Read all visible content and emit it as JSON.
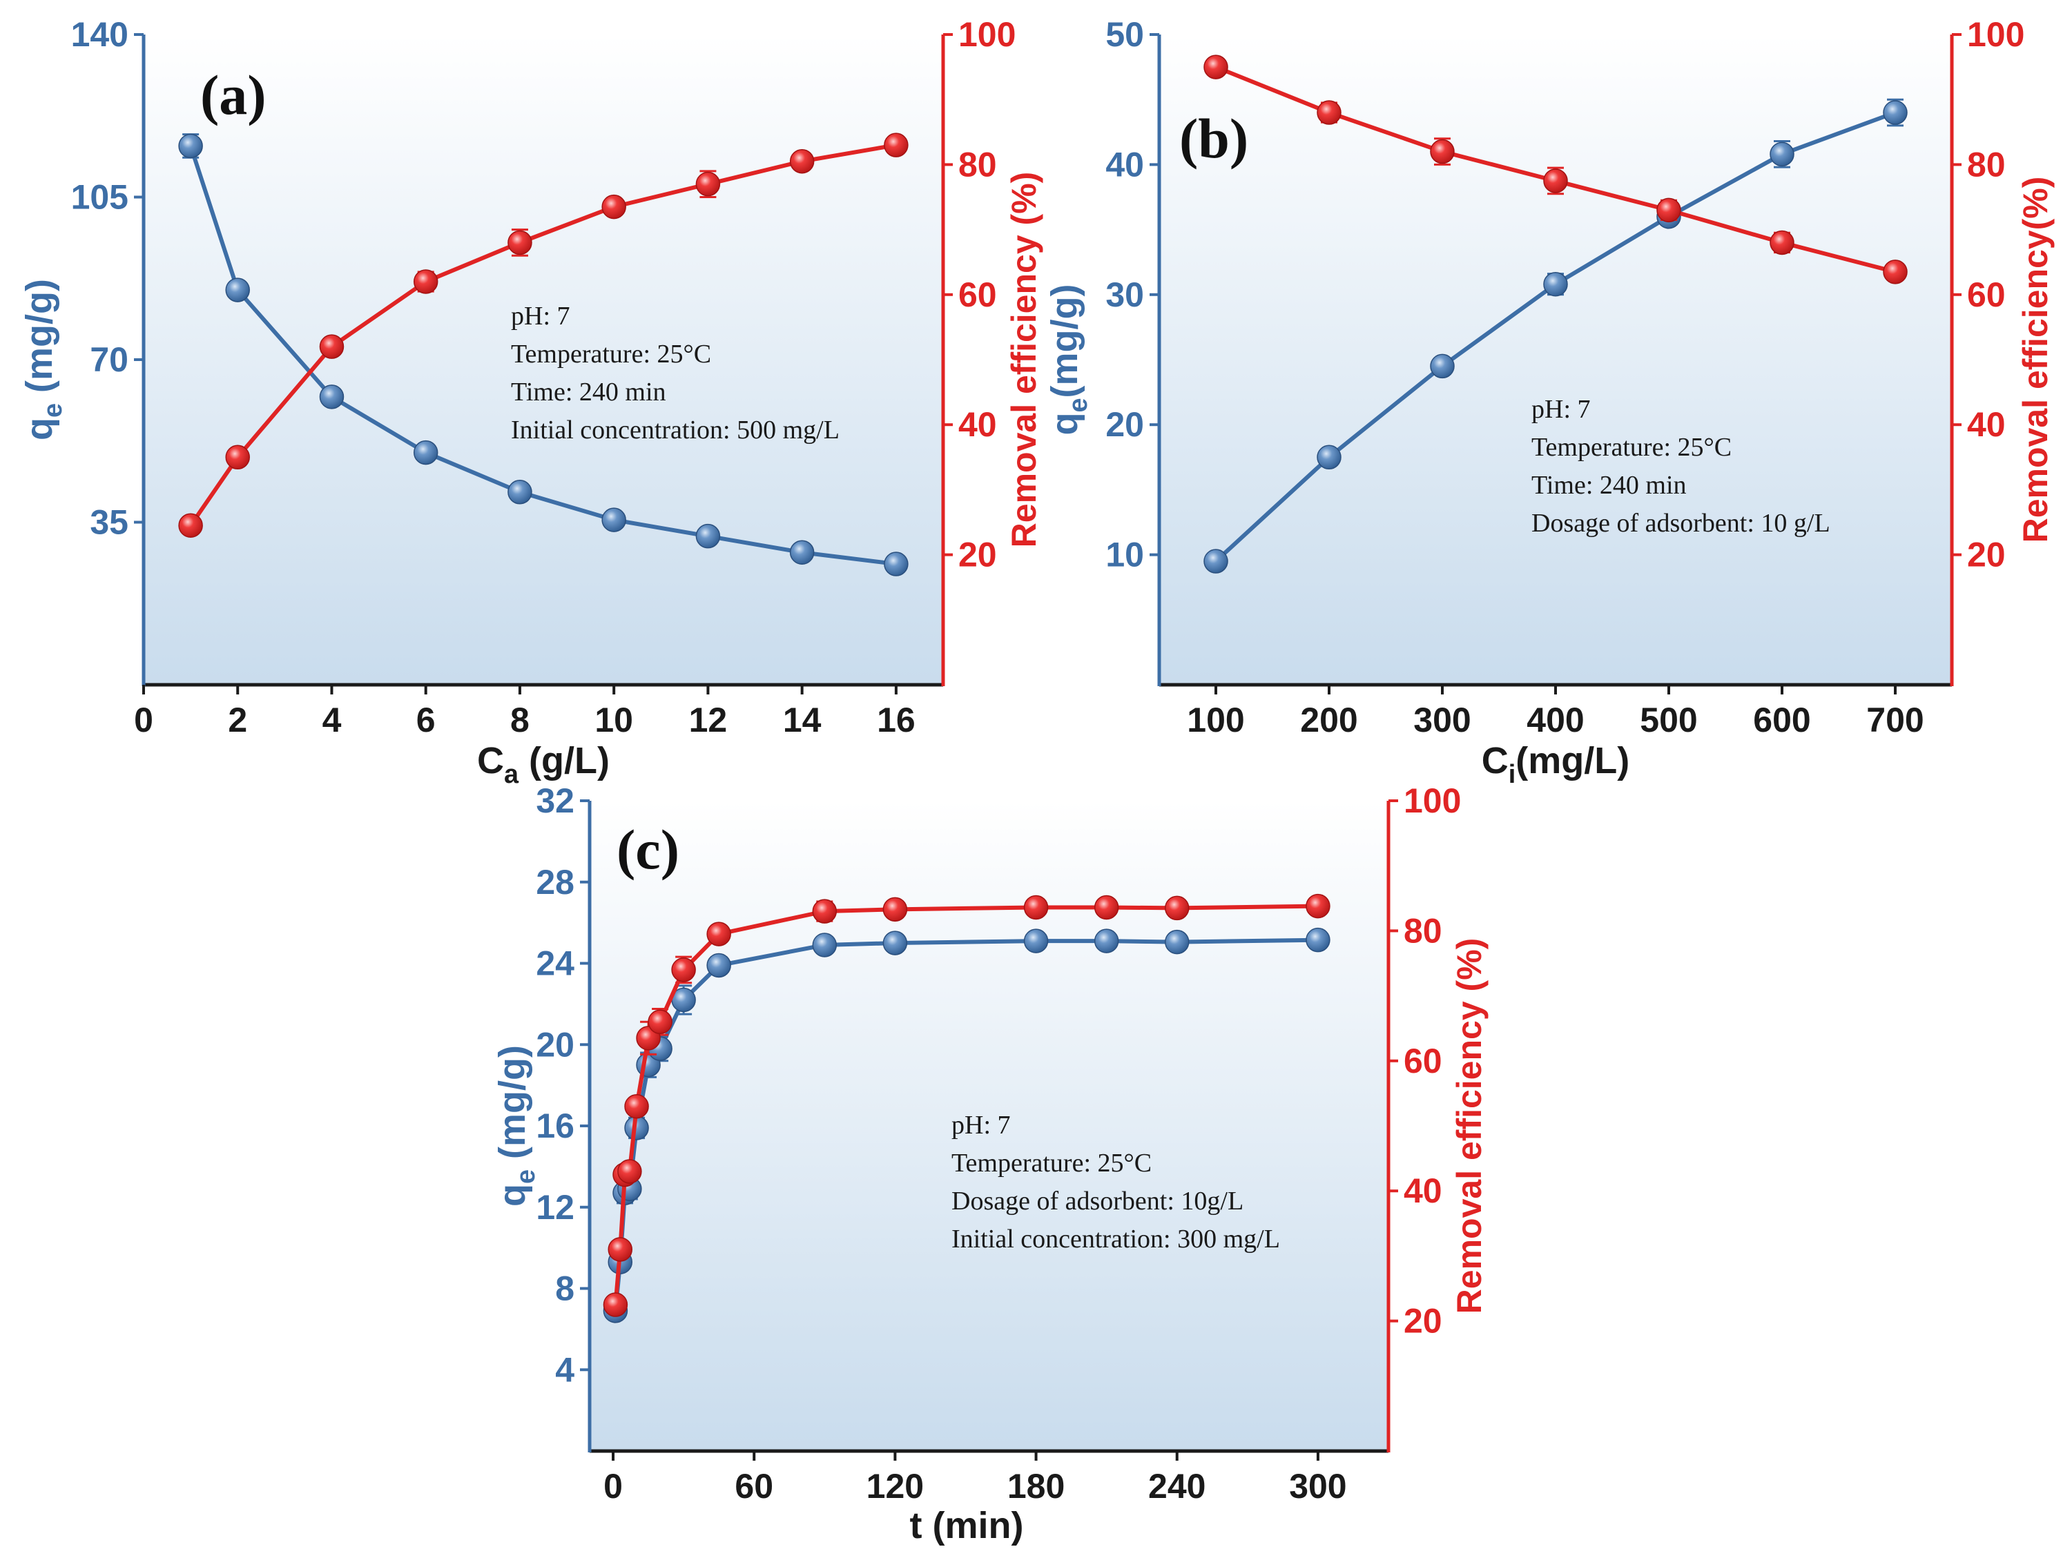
{
  "figure": {
    "colors": {
      "blue": "#3d6ea6",
      "red": "#e02424",
      "axis_text_blue": "#3d6ea6",
      "axis_text_red": "#e02424",
      "bg_top": "#ffffff",
      "bg_bottom": "#c9dced"
    }
  },
  "chart_data": [
    {
      "id": "a",
      "type": "line",
      "panel_label": "(a)",
      "xlabel_main": "C",
      "xlabel_sub": "a",
      "xlabel_tail": " (g/L)",
      "ylabel_left_main": "q",
      "ylabel_left_sub": "e",
      "ylabel_left_tail": " (mg/g)",
      "ylabel_right": "Removal efficiency (%)",
      "xlim": [
        0,
        17
      ],
      "ylim_left": [
        0,
        140
      ],
      "ylim_right": [
        0,
        100
      ],
      "x_ticks": [
        "0",
        "2",
        "4",
        "6",
        "8",
        "10",
        "12",
        "14",
        "16"
      ],
      "x_tick_values": [
        0,
        2,
        4,
        6,
        8,
        10,
        12,
        14,
        16
      ],
      "y_left_ticks": [
        "35",
        "70",
        "105",
        "140"
      ],
      "y_left_tick_values": [
        35,
        70,
        105,
        140
      ],
      "y_right_ticks": [
        "20",
        "40",
        "60",
        "80",
        "100"
      ],
      "y_right_tick_values": [
        20,
        40,
        60,
        80,
        100
      ],
      "annotations": [
        "pH: 7",
        "Temperature: 25°C",
        "Time: 240 min",
        "Initial concentration: 500 mg/L"
      ],
      "series": [
        {
          "name": "qe",
          "axis": "left",
          "color": "#3d6ea6",
          "x": [
            1,
            2,
            4,
            6,
            8,
            10,
            12,
            14,
            16
          ],
          "values": [
            116,
            85,
            62,
            50,
            41.5,
            35.5,
            32,
            28.5,
            26
          ],
          "errors": [
            2.5,
            1,
            1,
            1,
            1,
            1,
            1,
            1,
            1
          ]
        },
        {
          "name": "Removal efficiency",
          "axis": "right",
          "color": "#e02424",
          "x": [
            1,
            2,
            4,
            6,
            8,
            10,
            12,
            14,
            16
          ],
          "values": [
            24.5,
            35,
            52,
            62,
            68,
            73.5,
            77,
            80.5,
            83
          ],
          "errors": [
            1,
            1,
            1,
            1.5,
            2,
            1,
            2,
            1,
            1
          ]
        }
      ]
    },
    {
      "id": "b",
      "type": "line",
      "panel_label": "(b)",
      "xlabel_main": "C",
      "xlabel_sub": "i",
      "xlabel_tail": "(mg/L)",
      "ylabel_left_main": "q",
      "ylabel_left_sub": "e",
      "ylabel_left_tail": "(mg/g)",
      "ylabel_right": "Removal efficiency(%)",
      "xlim": [
        50,
        750
      ],
      "ylim_left": [
        0,
        50
      ],
      "ylim_right": [
        0,
        100
      ],
      "x_ticks": [
        "100",
        "200",
        "300",
        "400",
        "500",
        "600",
        "700"
      ],
      "x_tick_values": [
        100,
        200,
        300,
        400,
        500,
        600,
        700
      ],
      "y_left_ticks": [
        "10",
        "20",
        "30",
        "40",
        "50"
      ],
      "y_left_tick_values": [
        10,
        20,
        30,
        40,
        50
      ],
      "y_right_ticks": [
        "20",
        "40",
        "60",
        "80",
        "100"
      ],
      "y_right_tick_values": [
        20,
        40,
        60,
        80,
        100
      ],
      "annotations": [
        "pH: 7",
        "Temperature: 25°C",
        "Time: 240 min",
        "Dosage of adsorbent: 10 g/L"
      ],
      "series": [
        {
          "name": "qe",
          "axis": "left",
          "color": "#3d6ea6",
          "x": [
            100,
            200,
            300,
            400,
            500,
            600,
            700
          ],
          "values": [
            9.5,
            17.5,
            24.5,
            30.8,
            36,
            40.8,
            44
          ],
          "errors": [
            0.5,
            0.5,
            0.6,
            0.8,
            0.6,
            1,
            1
          ]
        },
        {
          "name": "Removal efficiency",
          "axis": "right",
          "color": "#e02424",
          "x": [
            100,
            200,
            300,
            400,
            500,
            600,
            700
          ],
          "values": [
            95,
            88,
            82,
            77.5,
            73,
            68,
            63.5
          ],
          "errors": [
            1,
            1.5,
            2,
            2,
            1.5,
            1.5,
            1
          ]
        }
      ]
    },
    {
      "id": "c",
      "type": "line",
      "panel_label": "(c)",
      "xlabel_main": "t (min)",
      "xlabel_sub": "",
      "xlabel_tail": "",
      "ylabel_left_main": "q",
      "ylabel_left_sub": "e",
      "ylabel_left_tail": " (mg/g)",
      "ylabel_right": "Removal efficiency (%)",
      "xlim": [
        -10,
        330
      ],
      "ylim_left": [
        0,
        32
      ],
      "ylim_right": [
        0,
        100
      ],
      "x_ticks": [
        "0",
        "60",
        "120",
        "180",
        "240",
        "300"
      ],
      "x_tick_values": [
        0,
        60,
        120,
        180,
        240,
        300
      ],
      "y_left_ticks": [
        "4",
        "8",
        "12",
        "16",
        "20",
        "24",
        "28",
        "32"
      ],
      "y_left_tick_values": [
        4,
        8,
        12,
        16,
        20,
        24,
        28,
        32
      ],
      "y_right_ticks": [
        "20",
        "40",
        "60",
        "80",
        "100"
      ],
      "y_right_tick_values": [
        20,
        40,
        60,
        80,
        100
      ],
      "annotations": [
        "pH: 7",
        "Temperature: 25°C",
        "Dosage of adsorbent: 10g/L",
        "Initial concentration: 300 mg/L"
      ],
      "series": [
        {
          "name": "qe",
          "axis": "left",
          "color": "#3d6ea6",
          "x": [
            1,
            3,
            5,
            7,
            10,
            15,
            20,
            30,
            45,
            90,
            120,
            180,
            210,
            240,
            300
          ],
          "values": [
            6.9,
            9.3,
            12.7,
            12.9,
            15.9,
            19,
            19.8,
            22.2,
            23.9,
            24.9,
            25,
            25.1,
            25.1,
            25.05,
            25.15
          ],
          "errors": [
            0.4,
            0.4,
            0.5,
            0.5,
            0.5,
            0.6,
            0.6,
            0.7,
            0.4,
            0.4,
            0.3,
            0.3,
            0.3,
            0.3,
            0.3
          ]
        },
        {
          "name": "Removal efficiency",
          "axis": "right",
          "color": "#e02424",
          "x": [
            1,
            3,
            5,
            7,
            10,
            15,
            20,
            30,
            45,
            90,
            120,
            180,
            210,
            240,
            300
          ],
          "values": [
            22.5,
            31,
            42.5,
            43,
            53,
            63.5,
            66,
            74,
            79.5,
            83,
            83.3,
            83.6,
            83.6,
            83.5,
            83.8
          ],
          "errors": [
            1,
            1,
            1.2,
            1,
            1.2,
            2.5,
            2,
            2,
            1,
            1.5,
            1,
            1,
            1,
            1,
            1
          ]
        }
      ]
    }
  ]
}
